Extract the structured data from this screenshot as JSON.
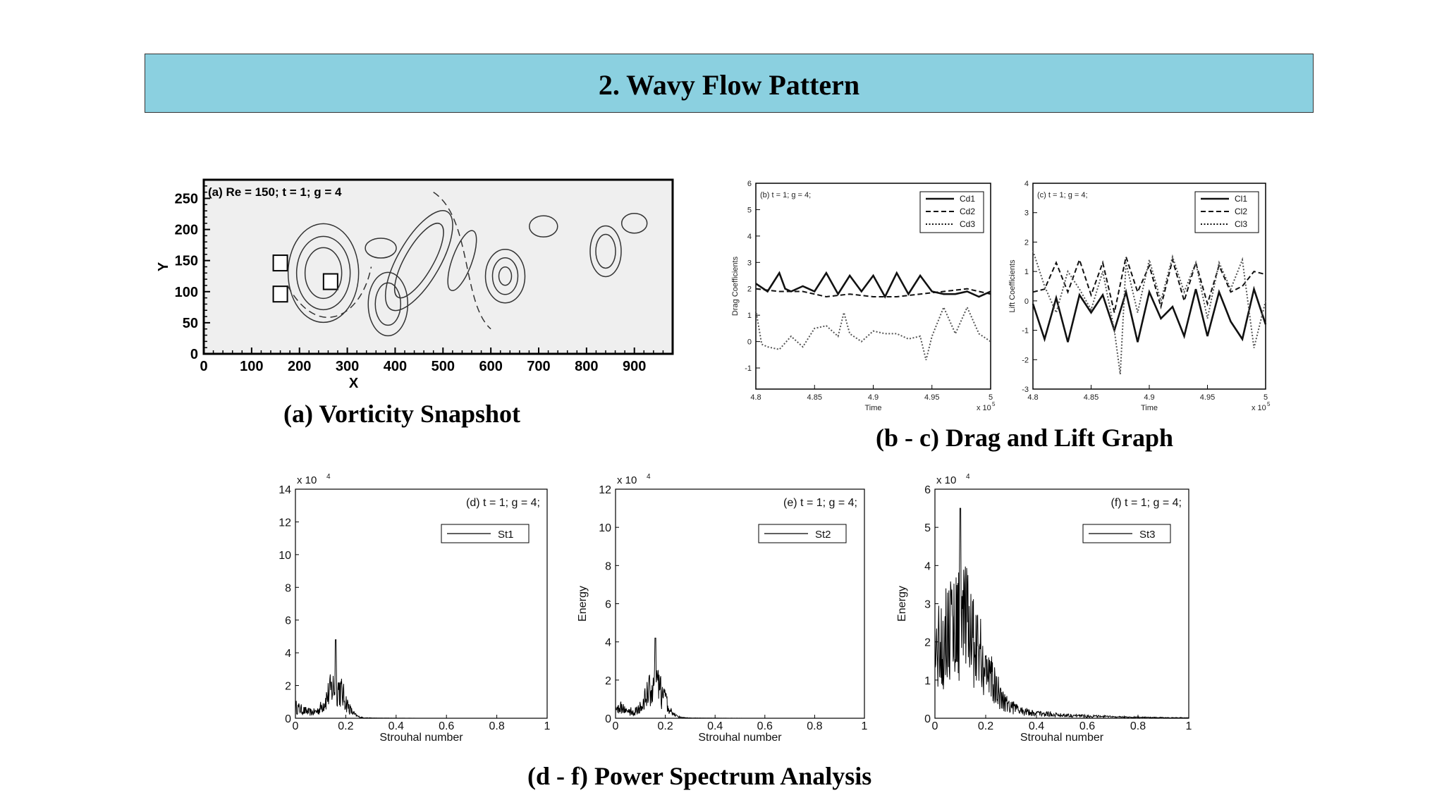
{
  "slide": {
    "title": "2.  Wavy Flow Pattern",
    "caption_a": "(a) Vorticity Snapshot",
    "caption_bc": "(b - c) Drag and Lift Graph",
    "caption_df": "(d - f) Power Spectrum Analysis"
  },
  "chart_data": [
    {
      "id": "a",
      "type": "contour",
      "title": "(a) Re = 150; t = 1; g = 4",
      "xlabel": "X",
      "ylabel": "Y",
      "xlim": [
        0,
        980
      ],
      "ylim": [
        0,
        280
      ],
      "xticks": [
        "0",
        "100",
        "200",
        "300",
        "400",
        "500",
        "600",
        "700",
        "800",
        "900"
      ],
      "yticks": [
        "0",
        "50",
        "100",
        "150",
        "200",
        "250"
      ]
    },
    {
      "id": "b",
      "type": "line",
      "title": "(b) t = 1; g = 4;",
      "xlabel": "Time",
      "ylabel": "Drag Coefficients",
      "xlim": [
        4.8,
        5
      ],
      "ylim": [
        -1.8,
        6
      ],
      "xticks": [
        "4.8",
        "4.85",
        "4.9",
        "4.95",
        "5"
      ],
      "yticks": [
        "-1",
        "0",
        "1",
        "2",
        "3",
        "4",
        "5",
        "6"
      ],
      "x_multiplier": "x 10",
      "x_multiplier_exp": "5",
      "legend": "top-right",
      "series": [
        {
          "name": "Cd1",
          "style": "solid",
          "x": [
            4.8,
            4.81,
            4.82,
            4.825,
            4.83,
            4.84,
            4.85,
            4.86,
            4.87,
            4.88,
            4.89,
            4.9,
            4.91,
            4.92,
            4.93,
            4.94,
            4.95,
            4.96,
            4.97,
            4.98,
            4.99,
            5.0
          ],
          "values": [
            2.2,
            1.9,
            2.6,
            2.0,
            1.9,
            2.1,
            1.9,
            2.6,
            1.8,
            2.5,
            1.9,
            2.5,
            1.7,
            2.6,
            1.8,
            2.5,
            1.9,
            1.8,
            1.8,
            1.9,
            1.7,
            1.9
          ]
        },
        {
          "name": "Cd2",
          "style": "dashed",
          "x": [
            4.8,
            4.82,
            4.84,
            4.86,
            4.88,
            4.9,
            4.92,
            4.94,
            4.96,
            4.98,
            5.0
          ],
          "values": [
            2.0,
            1.9,
            1.9,
            1.7,
            1.8,
            1.7,
            1.7,
            1.8,
            1.9,
            2.0,
            1.8
          ]
        },
        {
          "name": "Cd3",
          "style": "dotted",
          "x": [
            4.8,
            4.805,
            4.81,
            4.82,
            4.83,
            4.84,
            4.85,
            4.86,
            4.87,
            4.875,
            4.88,
            4.89,
            4.9,
            4.91,
            4.92,
            4.93,
            4.94,
            4.945,
            4.95,
            4.96,
            4.97,
            4.98,
            4.99,
            5.0
          ],
          "values": [
            1.2,
            -0.1,
            -0.2,
            -0.3,
            0.2,
            -0.2,
            0.5,
            0.6,
            0.2,
            1.1,
            0.3,
            0.0,
            0.4,
            0.3,
            0.3,
            0.1,
            0.2,
            -0.7,
            0.2,
            1.3,
            0.3,
            1.3,
            0.3,
            0.0
          ]
        }
      ]
    },
    {
      "id": "c",
      "type": "line",
      "title": "(c) t = 1; g = 4;",
      "xlabel": "Time",
      "ylabel": "Lift Coefficients",
      "xlim": [
        4.8,
        5
      ],
      "ylim": [
        -3,
        4
      ],
      "xticks": [
        "4.8",
        "4.85",
        "4.9",
        "4.95",
        "5"
      ],
      "yticks": [
        "-3",
        "-2",
        "-1",
        "0",
        "1",
        "2",
        "3",
        "4"
      ],
      "x_multiplier": "x 10",
      "x_multiplier_exp": "5",
      "legend": "top-right",
      "series": [
        {
          "name": "Cl1",
          "style": "solid",
          "x": [
            4.8,
            4.81,
            4.82,
            4.83,
            4.84,
            4.85,
            4.86,
            4.87,
            4.88,
            4.89,
            4.9,
            4.91,
            4.92,
            4.93,
            4.94,
            4.95,
            4.96,
            4.97,
            4.98,
            4.99,
            5.0
          ],
          "values": [
            -0.1,
            -1.3,
            0.1,
            -1.4,
            0.2,
            -0.4,
            0.2,
            -1.0,
            0.3,
            -1.4,
            0.3,
            -0.6,
            -0.2,
            -1.2,
            0.4,
            -1.2,
            0.3,
            -0.7,
            -1.3,
            0.4,
            -0.8
          ]
        },
        {
          "name": "Cl2",
          "style": "dashed",
          "x": [
            4.8,
            4.81,
            4.82,
            4.83,
            4.84,
            4.85,
            4.86,
            4.87,
            4.88,
            4.89,
            4.9,
            4.91,
            4.92,
            4.93,
            4.94,
            4.95,
            4.96,
            4.97,
            4.98,
            4.99,
            5.0
          ],
          "values": [
            0.3,
            0.4,
            1.3,
            0.3,
            1.4,
            0.2,
            1.3,
            -0.4,
            1.5,
            0.3,
            1.2,
            -0.2,
            1.4,
            0.0,
            1.3,
            -0.1,
            1.2,
            0.3,
            0.5,
            1.0,
            0.9
          ]
        },
        {
          "name": "Cl3",
          "style": "dotted",
          "x": [
            4.8,
            4.81,
            4.82,
            4.83,
            4.84,
            4.85,
            4.86,
            4.87,
            4.875,
            4.88,
            4.89,
            4.9,
            4.91,
            4.92,
            4.93,
            4.94,
            4.95,
            4.96,
            4.97,
            4.98,
            4.99,
            5.0
          ],
          "values": [
            1.7,
            0.5,
            -0.4,
            1.0,
            0.4,
            -0.3,
            1.0,
            -1.0,
            -2.5,
            1.3,
            -0.4,
            1.4,
            0.0,
            1.5,
            0.3,
            1.3,
            -0.6,
            1.3,
            0.4,
            1.4,
            -1.6,
            0.0
          ]
        }
      ]
    },
    {
      "id": "d",
      "type": "line",
      "annotation": "(d) t = 1; g = 4;",
      "xlabel": "Strouhal number",
      "ylabel": "",
      "xlim": [
        0,
        1
      ],
      "ylim": [
        0,
        14
      ],
      "xticks": [
        "0",
        "0.2",
        "0.4",
        "0.6",
        "0.8",
        "1"
      ],
      "yticks": [
        "0",
        "2",
        "4",
        "6",
        "8",
        "10",
        "12",
        "14"
      ],
      "y_multiplier": "x 10",
      "y_multiplier_exp": "4",
      "legend": "top-right",
      "series": [
        {
          "name": "St1",
          "peak_x": 0.16,
          "peak": 4.8,
          "spread": 0.05
        }
      ]
    },
    {
      "id": "e",
      "type": "line",
      "annotation": "(e) t = 1; g = 4;",
      "xlabel": "Strouhal number",
      "ylabel": "Energy",
      "xlim": [
        0,
        1
      ],
      "ylim": [
        0,
        12
      ],
      "xticks": [
        "0",
        "0.2",
        "0.4",
        "0.6",
        "0.8",
        "1"
      ],
      "yticks": [
        "0",
        "2",
        "4",
        "6",
        "8",
        "10",
        "12"
      ],
      "y_multiplier": "x 10",
      "y_multiplier_exp": "4",
      "legend": "top-right",
      "series": [
        {
          "name": "St2",
          "peak_x": 0.16,
          "peak": 4.2,
          "spread": 0.05
        }
      ]
    },
    {
      "id": "f",
      "type": "line",
      "annotation": "(f) t = 1; g = 4;",
      "xlabel": "Strouhal number",
      "ylabel": "Energy",
      "xlim": [
        0,
        1
      ],
      "ylim": [
        0,
        6
      ],
      "xticks": [
        "0",
        "0.2",
        "0.4",
        "0.6",
        "0.8",
        "1"
      ],
      "yticks": [
        "0",
        "1",
        "2",
        "3",
        "4",
        "5",
        "6"
      ],
      "y_multiplier": "x 10",
      "y_multiplier_exp": "4",
      "legend": "top-right",
      "series": [
        {
          "name": "St3",
          "peak_x": 0.1,
          "peak": 5.5,
          "spread": 0.12
        }
      ]
    }
  ]
}
